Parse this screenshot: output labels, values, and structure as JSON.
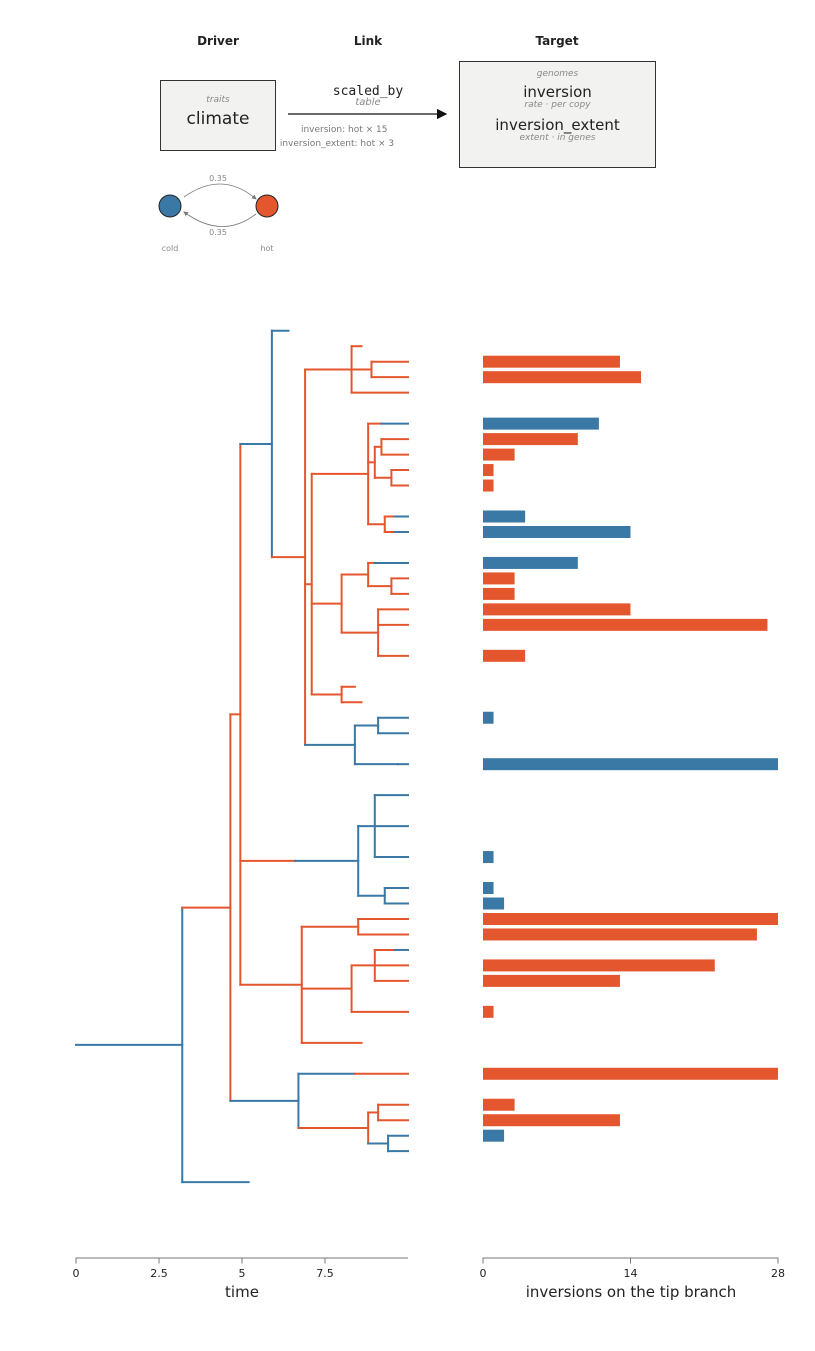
{
  "header": {
    "driver_heading": "Driver",
    "link_heading": "Link",
    "target_heading": "Target",
    "driver_box": {
      "category": "traits",
      "name": "climate"
    },
    "link": {
      "function": "scaled_by",
      "kind": "table",
      "lines": [
        "inversion:  hot × 15",
        "inversion_extent:  hot × 3"
      ]
    },
    "target_box": {
      "category": "genomes",
      "items": [
        {
          "name": "inversion",
          "sub": "rate · per copy"
        },
        {
          "name": "inversion_extent",
          "sub": "extent · in genes"
        }
      ]
    }
  },
  "markov": {
    "states": [
      {
        "name": "cold",
        "color": "#3a78a6"
      },
      {
        "name": "hot",
        "color": "#e4572e"
      }
    ],
    "rate_top": "0.35",
    "rate_bottom": "0.35"
  },
  "colors": {
    "cold": "#3a78a6",
    "hot": "#e4572e",
    "axis": "#777777"
  },
  "tree_axis": {
    "title": "time",
    "ticks": [
      "0",
      "2.5",
      "5",
      "7.5"
    ],
    "tick_values": [
      0,
      2.5,
      5,
      7.5
    ],
    "max_time": 10
  },
  "chart_data": {
    "type": "bar",
    "xlabel": "inversions on the tip branch",
    "ticks": [
      0,
      14,
      28
    ],
    "xlim": [
      0,
      28
    ],
    "bars": [
      {
        "tip": 3,
        "value": 13,
        "state": "hot"
      },
      {
        "tip": 4,
        "value": 15,
        "state": "hot"
      },
      {
        "tip": 7,
        "value": 11,
        "state": "cold"
      },
      {
        "tip": 8,
        "value": 9,
        "state": "hot"
      },
      {
        "tip": 9,
        "value": 3,
        "state": "hot"
      },
      {
        "tip": 10,
        "value": 1,
        "state": "hot"
      },
      {
        "tip": 11,
        "value": 1,
        "state": "hot"
      },
      {
        "tip": 13,
        "value": 4,
        "state": "cold"
      },
      {
        "tip": 14,
        "value": 14,
        "state": "cold"
      },
      {
        "tip": 16,
        "value": 9,
        "state": "cold"
      },
      {
        "tip": 17,
        "value": 3,
        "state": "hot"
      },
      {
        "tip": 18,
        "value": 3,
        "state": "hot"
      },
      {
        "tip": 19,
        "value": 14,
        "state": "hot"
      },
      {
        "tip": 20,
        "value": 27,
        "state": "hot"
      },
      {
        "tip": 22,
        "value": 4,
        "state": "hot"
      },
      {
        "tip": 26,
        "value": 1,
        "state": "cold"
      },
      {
        "tip": 29,
        "value": 28,
        "state": "cold"
      },
      {
        "tip": 35,
        "value": 1,
        "state": "cold"
      },
      {
        "tip": 37,
        "value": 1,
        "state": "cold"
      },
      {
        "tip": 38,
        "value": 2,
        "state": "cold"
      },
      {
        "tip": 39,
        "value": 28,
        "state": "hot"
      },
      {
        "tip": 40,
        "value": 26,
        "state": "hot"
      },
      {
        "tip": 42,
        "value": 22,
        "state": "hot"
      },
      {
        "tip": 43,
        "value": 13,
        "state": "hot"
      },
      {
        "tip": 45,
        "value": 1,
        "state": "hot"
      },
      {
        "tip": 49,
        "value": 28,
        "state": "hot"
      },
      {
        "tip": 51,
        "value": 3,
        "state": "hot"
      },
      {
        "tip": 52,
        "value": 13,
        "state": "hot"
      },
      {
        "tip": 53,
        "value": 2,
        "state": "cold"
      }
    ]
  }
}
